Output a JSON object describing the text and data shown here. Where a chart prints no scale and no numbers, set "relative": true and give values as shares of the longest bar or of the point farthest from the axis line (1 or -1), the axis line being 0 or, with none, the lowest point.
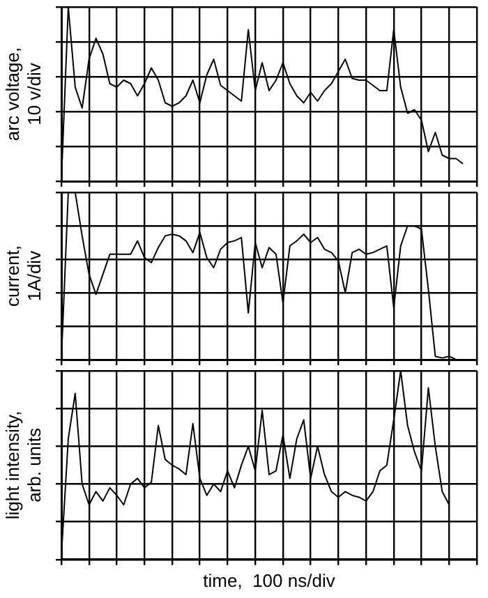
{
  "chart_data": [
    {
      "type": "line",
      "ylabel": "arc voltage, 10 v/div",
      "relative": true,
      "grid": true,
      "tick_labels": false,
      "legend": false,
      "marker": "none",
      "line_style": "solid",
      "categories": [
        null,
        null,
        null,
        null,
        null,
        null,
        null,
        null,
        null,
        null,
        null,
        null,
        null,
        null,
        null,
        null,
        null,
        null,
        null,
        null,
        null,
        null,
        null,
        null,
        null,
        null,
        null,
        null,
        null,
        null,
        null,
        null,
        null,
        null,
        null,
        null,
        null,
        null,
        null,
        null,
        null,
        null,
        null,
        null,
        null,
        null,
        null,
        null,
        null,
        null,
        null,
        null,
        null,
        null,
        null,
        null,
        null,
        null,
        null,
        null,
        null
      ],
      "series": [
        {
          "color": "#000000",
          "values": [
            0,
            1,
            0.54,
            0.42,
            0.7,
            0.82,
            0.73,
            0.56,
            0.54,
            0.58,
            0.56,
            0.49,
            0.56,
            0.65,
            0.58,
            0.45,
            0.43,
            0.45,
            0.49,
            0.58,
            0.45,
            0.61,
            0.7,
            0.55,
            0.52,
            0.49,
            0.46,
            0.87,
            0.52,
            0.68,
            0.52,
            0.58,
            0.68,
            0.56,
            0.49,
            0.45,
            0.51,
            0.46,
            0.52,
            0.56,
            0.63,
            0.7,
            0.59,
            0.58,
            0.58,
            0.55,
            0.52,
            0.52,
            0.87,
            0.54,
            0.39,
            0.41,
            0.35,
            0.17,
            0.28,
            0.15,
            0.13,
            0.13,
            0.1,
            null,
            null
          ]
        }
      ]
    },
    {
      "type": "line",
      "ylabel": "current, 1A/div",
      "relative": true,
      "grid": true,
      "tick_labels": false,
      "legend": false,
      "marker": "none",
      "line_style": "solid",
      "categories": [
        null,
        null,
        null,
        null,
        null,
        null,
        null,
        null,
        null,
        null,
        null,
        null,
        null,
        null,
        null,
        null,
        null,
        null,
        null,
        null,
        null,
        null,
        null,
        null,
        null,
        null,
        null,
        null,
        null,
        null,
        null,
        null,
        null,
        null,
        null,
        null,
        null,
        null,
        null,
        null,
        null,
        null,
        null,
        null,
        null,
        null,
        null,
        null,
        null,
        null,
        null,
        null,
        null,
        null,
        null,
        null,
        null,
        null,
        null,
        null,
        null
      ],
      "series": [
        {
          "color": "#000000",
          "values": [
            0,
            1,
            1,
            0.74,
            0.51,
            0.39,
            0.51,
            0.63,
            0.63,
            0.63,
            0.63,
            0.71,
            0.61,
            0.58,
            0.67,
            0.74,
            0.75,
            0.74,
            0.71,
            0.64,
            0.76,
            0.61,
            0.55,
            0.66,
            0.7,
            0.71,
            0.73,
            0.28,
            0.7,
            0.55,
            0.67,
            0.63,
            0.34,
            0.68,
            0.71,
            0.75,
            0.7,
            0.73,
            0.66,
            0.64,
            0.59,
            0.4,
            0.64,
            0.66,
            0.63,
            0.64,
            0.66,
            0.68,
            0.31,
            0.68,
            0.8,
            0.8,
            0.78,
            0.42,
            0.02,
            0.01,
            0.02,
            0,
            0,
            null,
            null
          ]
        }
      ]
    },
    {
      "type": "line",
      "ylabel": "light intensity, arb. units",
      "xlabel": "time,  100 ns/div",
      "relative": true,
      "grid": true,
      "tick_labels": false,
      "legend": false,
      "marker": "none",
      "line_style": "solid",
      "categories": [
        null,
        null,
        null,
        null,
        null,
        null,
        null,
        null,
        null,
        null,
        null,
        null,
        null,
        null,
        null,
        null,
        null,
        null,
        null,
        null,
        null,
        null,
        null,
        null,
        null,
        null,
        null,
        null,
        null,
        null,
        null,
        null,
        null,
        null,
        null,
        null,
        null,
        null,
        null,
        null,
        null,
        null,
        null,
        null,
        null,
        null,
        null,
        null,
        null,
        null,
        null,
        null,
        null,
        null,
        null,
        null,
        null,
        null,
        null,
        null,
        null
      ],
      "series": [
        {
          "color": "#000000",
          "values": [
            0.02,
            0.64,
            0.88,
            0.4,
            0.29,
            0.36,
            0.31,
            0.38,
            0.34,
            0.29,
            0.4,
            0.43,
            0.38,
            0.41,
            0.71,
            0.53,
            0.5,
            0.48,
            0.45,
            0.72,
            0.43,
            0.34,
            0.4,
            0.36,
            0.47,
            0.38,
            0.5,
            0.6,
            0.47,
            0.79,
            0.45,
            0.47,
            0.66,
            0.43,
            0.64,
            0.74,
            0.43,
            0.6,
            0.45,
            0.36,
            0.33,
            0.36,
            0.34,
            0.33,
            0.31,
            0.36,
            0.47,
            0.5,
            0.74,
            1,
            0.71,
            0.57,
            0.47,
            0.91,
            0.6,
            0.36,
            0.29,
            null,
            null,
            null,
            null
          ]
        }
      ]
    }
  ]
}
